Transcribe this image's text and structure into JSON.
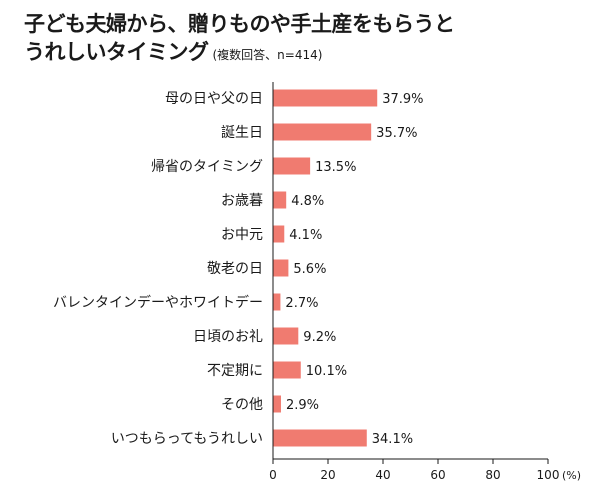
{
  "chart_data": {
    "type": "bar",
    "orientation": "horizontal",
    "title_lines": [
      "子ども夫婦から、贈りものや手土産をもらうと",
      "うれしいタイミング"
    ],
    "subtitle": "(複数回答、n=414)",
    "categories": [
      "母の日や父の日",
      "誕生日",
      "帰省のタイミング",
      "お歳暮",
      "お中元",
      "敬老の日",
      "バレンタインデーやホワイトデー",
      "日頃のお礼",
      "不定期に",
      "その他",
      "いつもらってもうれしい"
    ],
    "values": [
      37.9,
      35.7,
      13.5,
      4.8,
      4.1,
      5.6,
      2.7,
      9.2,
      10.1,
      2.9,
      34.1
    ],
    "value_labels": [
      "37.9%",
      "35.7%",
      "13.5%",
      "4.8%",
      "4.1%",
      "5.6%",
      "2.7%",
      "9.2%",
      "10.1%",
      "2.9%",
      "34.1%"
    ],
    "xlim": [
      0,
      100
    ],
    "xticks": [
      "0",
      "20",
      "40",
      "60",
      "80",
      "100"
    ],
    "x_unit": "(%)",
    "grid": false,
    "colors": {
      "bar": "#F07B70",
      "text": "#1a1a1a",
      "axis": "#1a1a1a"
    }
  }
}
